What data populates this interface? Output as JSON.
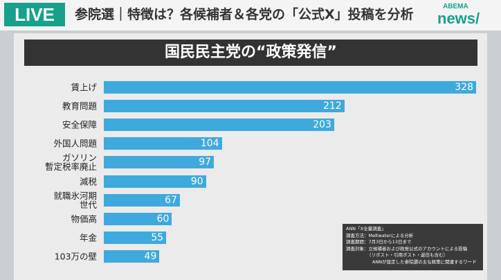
{
  "header": {
    "live": "LIVE",
    "headline": "参院選｜特徴は？各候補者＆各党の「公式X」投稿を分析",
    "logo_top": "ABEMA",
    "logo_bottom": "news/"
  },
  "chart_data": {
    "type": "bar",
    "orientation": "horizontal",
    "title": "国民民主党の“政策発信”",
    "categories": [
      "賃上げ",
      "教育問題",
      "安全保障",
      "外国人問題",
      "ガソリン\n暫定税率廃止",
      "減税",
      "就職氷河期\n世代",
      "物価高",
      "年金",
      "103万の壁"
    ],
    "values": [
      328,
      212,
      203,
      104,
      97,
      90,
      67,
      60,
      55,
      49
    ],
    "color": "#3fa9dd"
  },
  "note": {
    "lines": [
      "ANN「X全量調査」",
      "調査方法：Meltwaterによる分析",
      "調査期間：7月3日から13日まで",
      "調査対象：立候補者および政党公式のアカウントによる投稿",
      "（リポスト・引用ポスト・返信も含む）",
      "ANNが設定した参院選の主な政策に関連するワード"
    ]
  }
}
